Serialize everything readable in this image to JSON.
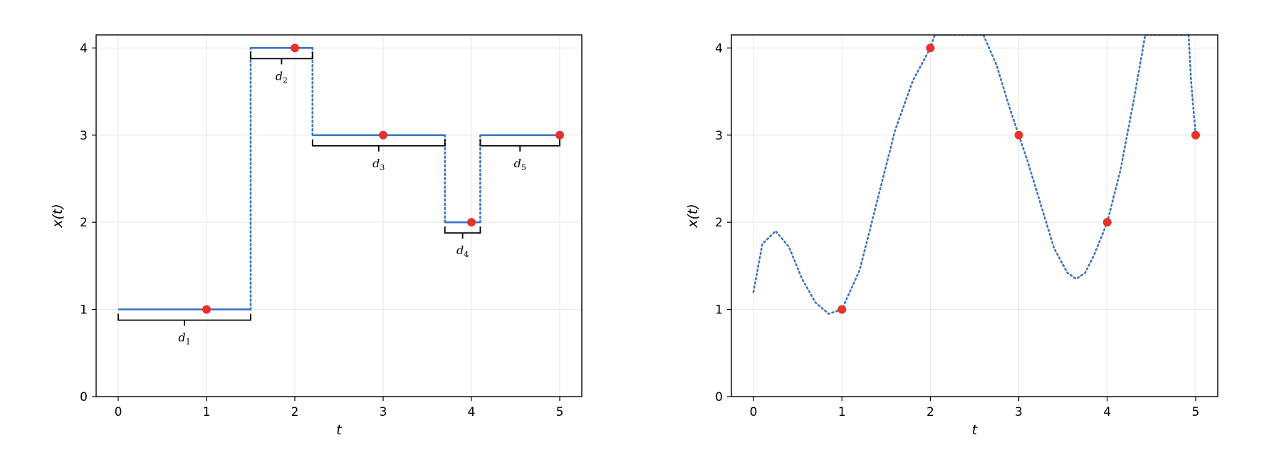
{
  "chart_data": [
    {
      "type": "line",
      "title": "",
      "xlabel": "t",
      "ylabel": "x(t)",
      "xlim": [
        -0.25,
        5.25
      ],
      "ylim": [
        0,
        4.15
      ],
      "xticks": [
        0,
        1,
        2,
        3,
        4,
        5
      ],
      "yticks": [
        0,
        1,
        2,
        3,
        4
      ],
      "grid": true,
      "steps": [
        {
          "x_start": 0.0,
          "x_end": 1.5,
          "value": 1
        },
        {
          "x_start": 1.5,
          "x_end": 2.2,
          "value": 4
        },
        {
          "x_start": 2.2,
          "x_end": 3.7,
          "value": 3
        },
        {
          "x_start": 3.7,
          "x_end": 4.1,
          "value": 2
        },
        {
          "x_start": 4.1,
          "x_end": 5.0,
          "value": 3
        }
      ],
      "points": {
        "x": [
          1,
          2,
          3,
          4,
          5
        ],
        "y": [
          1,
          4,
          3,
          2,
          3
        ]
      },
      "segment_labels": [
        "d",
        "d",
        "d",
        "d",
        "d"
      ],
      "segment_label_subscripts": [
        "1",
        "2",
        "3",
        "4",
        "5"
      ],
      "colors": {
        "line": "#3a75c4",
        "points": "#e8312a",
        "brace": "#000000",
        "grid": "#e6e6e6"
      }
    },
    {
      "type": "line",
      "title": "",
      "xlabel": "t",
      "ylabel": "x(t)",
      "xlim": [
        -0.25,
        5.25
      ],
      "ylim": [
        0,
        4.15
      ],
      "xticks": [
        0,
        1,
        2,
        3,
        4,
        5
      ],
      "yticks": [
        0,
        1,
        2,
        3,
        4
      ],
      "grid": true,
      "line_style": "dotted",
      "curve": {
        "x": [
          0,
          0.1,
          0.25,
          0.4,
          0.55,
          0.7,
          0.85,
          1.0,
          1.2,
          1.4,
          1.6,
          1.8,
          2.0,
          2.05,
          2.6,
          2.75,
          2.9,
          3.0,
          3.1,
          3.25,
          3.4,
          3.55,
          3.65,
          3.75,
          3.85,
          4.0,
          4.15,
          4.3,
          4.43,
          4.92,
          4.95,
          5.0
        ],
        "y": [
          1.2,
          1.75,
          1.9,
          1.72,
          1.35,
          1.08,
          0.95,
          1.0,
          1.45,
          2.25,
          3.05,
          3.62,
          4.0,
          4.15,
          4.15,
          3.8,
          3.3,
          3.0,
          2.7,
          2.2,
          1.7,
          1.42,
          1.35,
          1.42,
          1.62,
          2.0,
          2.6,
          3.4,
          4.15,
          4.15,
          3.6,
          3.0
        ]
      },
      "points": {
        "x": [
          1,
          2,
          3,
          4,
          5
        ],
        "y": [
          1,
          4,
          3,
          2,
          3
        ]
      },
      "colors": {
        "line": "#3a75c4",
        "points": "#e8312a",
        "grid": "#e6e6e6"
      }
    }
  ]
}
